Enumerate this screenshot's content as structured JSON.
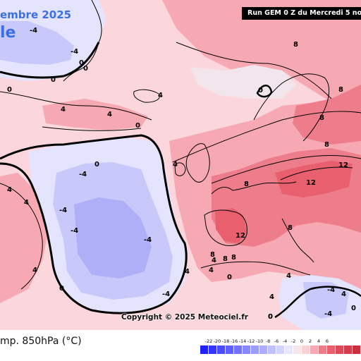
{
  "map": {
    "title_date": "embre 2025",
    "title_sub": "le",
    "run_label": "Run GEM 0 Z du Mercredi 5 no",
    "copyright": "Copyright © 2025 Meteociel.fr",
    "parameter_label": "mp. 850hPa (°C)",
    "contour_labels": [
      "-4",
      "-4",
      "0",
      "0",
      "0",
      "0",
      "0",
      "0",
      "4",
      "4",
      "4",
      "4",
      "4",
      "4",
      "4",
      "4",
      "-4",
      "-4",
      "-4",
      "-4",
      "0",
      "0",
      "0",
      "4",
      "4",
      "8",
      "8",
      "8",
      "8",
      "8",
      "8",
      "8",
      "12",
      "12",
      "12",
      "8",
      "8",
      "8",
      "4",
      "4",
      "0",
      "-4",
      "-4",
      "0",
      "4",
      "-4",
      "0"
    ]
  },
  "colors": {
    "cold_deep": "#8c8cf5",
    "cold": "#c8c8fb",
    "cool": "#e4e4ff",
    "neutral": "#f2e6ec",
    "warm_light": "#fbd6dc",
    "warm": "#f6a8b3",
    "warm_strong": "#ee7d8c",
    "hot": "#e8606e",
    "brand_blue": "#3b6fe6"
  },
  "legend": {
    "ticks": [
      "-22",
      "-20",
      "-18",
      "-16",
      "-14",
      "-12",
      "-10",
      "-8",
      "-6",
      "-4",
      "-2",
      "0",
      "2",
      "4",
      "6"
    ],
    "swatches": [
      "#2020ff",
      "#3535ff",
      "#4a4aff",
      "#5f5fff",
      "#7373ff",
      "#8787ff",
      "#9a9aff",
      "#adadff",
      "#c0c0ff",
      "#d3d3ff",
      "#e6e6ff",
      "#f5e6ec",
      "#fbd0d6",
      "#f6a8b3",
      "#ee7d8c",
      "#e8606e",
      "#de4a5a",
      "#d43c4c",
      "#cc2f40"
    ]
  }
}
